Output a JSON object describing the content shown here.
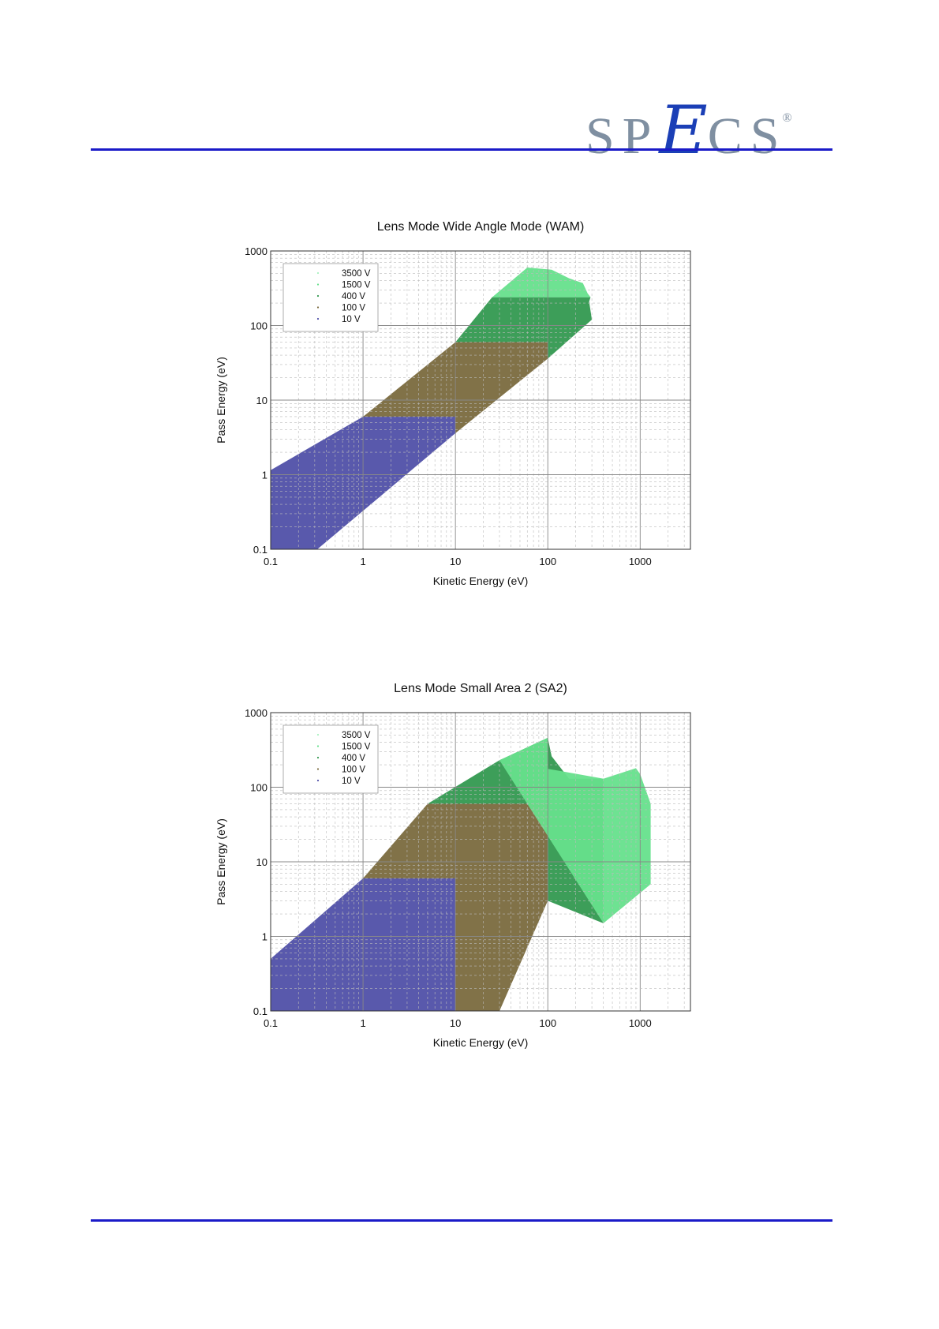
{
  "header": {
    "logo_text": "SPECS",
    "logo_registered": "®",
    "logo_colors": {
      "letters": "#7f8fa1",
      "e": "#1b3fb6"
    },
    "rule_color": "#1a1ac8"
  },
  "chart_data": [
    {
      "type": "area",
      "title": "Lens Mode Wide Angle Mode (WAM)",
      "xlabel": "Kinetic Energy (eV)",
      "ylabel": "Pass Energy (eV)",
      "xscale": "log",
      "yscale": "log",
      "xlim": [
        0.1,
        3500
      ],
      "ylim": [
        0.1,
        1000
      ],
      "xticks": [
        "0.1",
        "1",
        "10",
        "100",
        "1000"
      ],
      "yticks": [
        "0.1",
        "1",
        "10",
        "100",
        "1000"
      ],
      "grid": true,
      "legend": {
        "placement": "top-left",
        "entries": [
          "3500 V",
          "1500 V",
          "400 V",
          "100 V",
          "10 V"
        ]
      },
      "series": [
        {
          "name": "10 V",
          "color": "#5050a8",
          "polygon": [
            [
              0.1,
              0.1
            ],
            [
              0.1,
              1.15
            ],
            [
              1,
              6
            ],
            [
              10,
              6
            ],
            [
              10,
              3.6
            ],
            [
              0.32,
              0.1
            ]
          ]
        },
        {
          "name": "100 V",
          "color": "#7a6a3e",
          "polygon": [
            [
              1,
              6
            ],
            [
              10,
              60
            ],
            [
              100,
              60
            ],
            [
              100,
              36
            ],
            [
              10,
              3.6
            ],
            [
              10,
              6
            ]
          ]
        },
        {
          "name": "400 V",
          "color": "#339950",
          "polygon": [
            [
              10,
              60
            ],
            [
              25,
              240
            ],
            [
              290,
              240
            ],
            [
              280,
              210
            ],
            [
              300,
              120
            ],
            [
              100,
              36
            ],
            [
              100,
              60
            ]
          ]
        },
        {
          "name": "1500 V",
          "color": "#66e08c",
          "polygon": [
            [
              25,
              240
            ],
            [
              60,
              600
            ],
            [
              110,
              560
            ],
            [
              170,
              430
            ],
            [
              240,
              370
            ],
            [
              270,
              270
            ],
            [
              290,
              240
            ]
          ]
        },
        {
          "name": "3500 V",
          "color": "#a8f0c0",
          "polygon": []
        }
      ]
    },
    {
      "type": "area",
      "title": "Lens Mode Small Area 2 (SA2)",
      "xlabel": "Kinetic Energy (eV)",
      "ylabel": "Pass Energy (eV)",
      "xscale": "log",
      "yscale": "log",
      "xlim": [
        0.1,
        3500
      ],
      "ylim": [
        0.1,
        1000
      ],
      "xticks": [
        "0.1",
        "1",
        "10",
        "100",
        "1000"
      ],
      "yticks": [
        "0.1",
        "1",
        "10",
        "100",
        "1000"
      ],
      "grid": true,
      "legend": {
        "placement": "top-left",
        "entries": [
          "3500 V",
          "1500 V",
          "400 V",
          "100 V",
          "10 V"
        ]
      },
      "series": [
        {
          "name": "10 V",
          "color": "#5050a8",
          "polygon": [
            [
              0.1,
              0.1
            ],
            [
              0.1,
              0.5
            ],
            [
              1,
              6
            ],
            [
              10,
              6
            ],
            [
              10,
              0.1
            ]
          ]
        },
        {
          "name": "100 V",
          "color": "#7a6a3e",
          "polygon": [
            [
              1,
              6
            ],
            [
              5,
              60
            ],
            [
              100,
              60
            ],
            [
              100,
              3
            ],
            [
              30,
              0.1
            ],
            [
              10,
              0.1
            ],
            [
              10,
              6
            ]
          ]
        },
        {
          "name": "400 V",
          "color": "#339950",
          "polygon": [
            [
              5,
              60
            ],
            [
              30,
              230
            ],
            [
              100,
              460
            ],
            [
              110,
              260
            ],
            [
              170,
              130
            ],
            [
              400,
              130
            ],
            [
              400,
              1.5
            ],
            [
              100,
              3
            ],
            [
              100,
              60
            ]
          ]
        },
        {
          "name": "1500 V",
          "color": "#66e08c",
          "polygon": [
            [
              30,
              230
            ],
            [
              100,
              460
            ],
            [
              100,
              160
            ],
            [
              30,
              230
            ],
            [
              400,
              130
            ],
            [
              900,
              180
            ],
            [
              1000,
              150
            ],
            [
              1300,
              60
            ],
            [
              1300,
              5
            ],
            [
              400,
              1.5
            ]
          ]
        },
        {
          "name": "3500 V",
          "color": "#a8f0c0",
          "polygon": []
        }
      ]
    }
  ]
}
